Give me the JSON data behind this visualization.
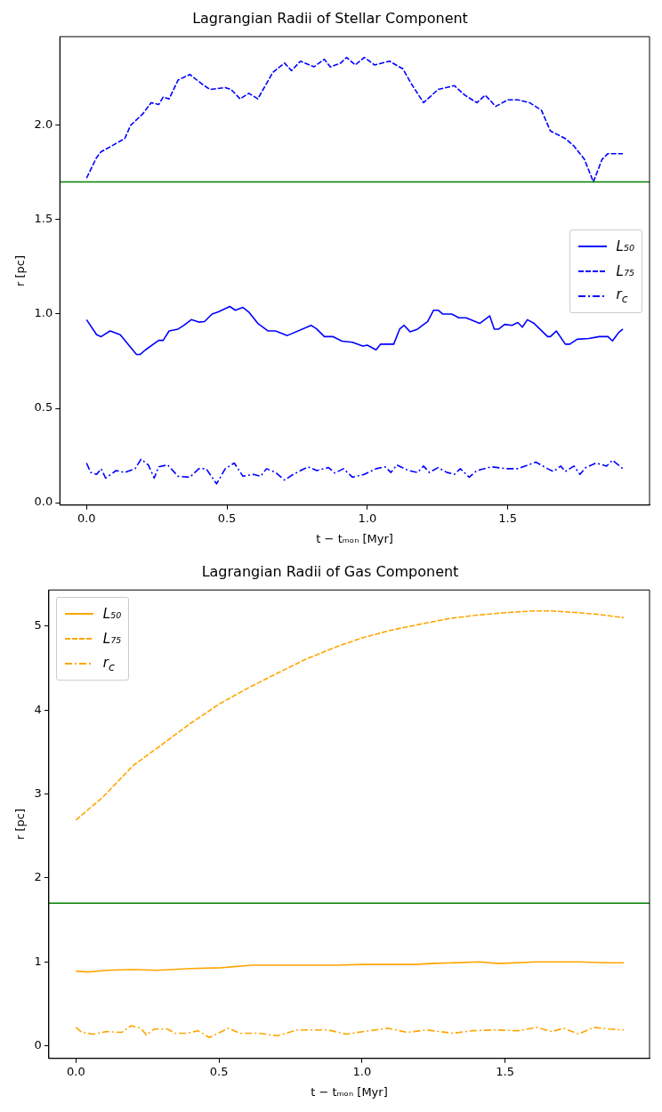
{
  "chart_data": [
    {
      "type": "line",
      "title": "Lagrangian Radii of Stellar Component",
      "xlabel": "t − tₘₒₙ [Myr]",
      "ylabel": "r [pc]",
      "xlim": [
        -0.095,
        2.005
      ],
      "ylim": [
        -0.013,
        2.47
      ],
      "xticks": [
        {
          "value": 0,
          "label": "0.0"
        },
        {
          "value": 0.5,
          "label": "0.5"
        },
        {
          "value": 1,
          "label": "1.0"
        },
        {
          "value": 1.5,
          "label": "1.5"
        }
      ],
      "yticks": [
        {
          "value": 0,
          "label": "0.0"
        },
        {
          "value": 0.5,
          "label": "0.5"
        },
        {
          "value": 1,
          "label": "1.0"
        },
        {
          "value": 1.5,
          "label": "1.5"
        },
        {
          "value": 2,
          "label": "2.0"
        }
      ],
      "grid": false,
      "legend": "right",
      "marker": "none",
      "ref_lines": [
        {
          "axis": "y",
          "value": 1.7,
          "color": "#008000"
        }
      ],
      "series": [
        {
          "name": "L₅₀",
          "color": "#0000ff",
          "line_style": "solid",
          "x": [
            0,
            0.036,
            0.052,
            0.084,
            0.12,
            0.178,
            0.19,
            0.21,
            0.257,
            0.273,
            0.294,
            0.326,
            0.347,
            0.373,
            0.4,
            0.42,
            0.447,
            0.468,
            0.51,
            0.53,
            0.557,
            0.578,
            0.61,
            0.647,
            0.673,
            0.715,
            0.8,
            0.82,
            0.847,
            0.878,
            0.91,
            0.947,
            0.984,
            1.0,
            1.031,
            1.047,
            1.094,
            1.115,
            1.131,
            1.152,
            1.179,
            1.215,
            1.236,
            1.252,
            1.268,
            1.3,
            1.326,
            1.352,
            1.4,
            1.436,
            1.452,
            1.468,
            1.489,
            1.515,
            1.536,
            1.552,
            1.57,
            1.594,
            1.642,
            1.652,
            1.673,
            1.705,
            1.721,
            1.747,
            1.789,
            1.826,
            1.857,
            1.873,
            1.894,
            1.91
          ],
          "values": [
            0.97,
            0.89,
            0.88,
            0.91,
            0.89,
            0.785,
            0.785,
            0.81,
            0.86,
            0.86,
            0.91,
            0.92,
            0.94,
            0.97,
            0.957,
            0.96,
            1.0,
            1.01,
            1.04,
            1.02,
            1.035,
            1.01,
            0.95,
            0.91,
            0.91,
            0.886,
            0.94,
            0.92,
            0.88,
            0.88,
            0.856,
            0.85,
            0.83,
            0.835,
            0.81,
            0.84,
            0.84,
            0.92,
            0.94,
            0.906,
            0.92,
            0.96,
            1.02,
            1.02,
            1.0,
            1.0,
            0.98,
            0.98,
            0.95,
            0.99,
            0.92,
            0.92,
            0.945,
            0.94,
            0.955,
            0.93,
            0.97,
            0.95,
            0.88,
            0.88,
            0.91,
            0.84,
            0.84,
            0.866,
            0.87,
            0.88,
            0.88,
            0.857,
            0.9,
            0.92
          ]
        },
        {
          "name": "L₇₅",
          "color": "#0000ff",
          "line_style": "dashed",
          "x": [
            0,
            0.036,
            0.052,
            0.089,
            0.136,
            0.157,
            0.2,
            0.23,
            0.257,
            0.273,
            0.294,
            0.326,
            0.368,
            0.41,
            0.44,
            0.494,
            0.515,
            0.547,
            0.578,
            0.61,
            0.663,
            0.705,
            0.73,
            0.762,
            0.81,
            0.847,
            0.868,
            0.905,
            0.926,
            0.957,
            0.989,
            1.026,
            1.079,
            1.126,
            1.157,
            1.2,
            1.252,
            1.31,
            1.347,
            1.39,
            1.42,
            1.457,
            1.5,
            1.536,
            1.578,
            1.62,
            1.652,
            1.705,
            1.736,
            1.773,
            1.805,
            1.836,
            1.857,
            1.884,
            1.91
          ],
          "values": [
            1.72,
            1.83,
            1.86,
            1.89,
            1.93,
            2.0,
            2.06,
            2.12,
            2.11,
            2.15,
            2.14,
            2.24,
            2.27,
            2.22,
            2.19,
            2.2,
            2.19,
            2.14,
            2.17,
            2.14,
            2.28,
            2.33,
            2.29,
            2.34,
            2.31,
            2.35,
            2.31,
            2.33,
            2.36,
            2.32,
            2.36,
            2.32,
            2.34,
            2.3,
            2.22,
            2.12,
            2.19,
            2.21,
            2.16,
            2.12,
            2.16,
            2.1,
            2.135,
            2.135,
            2.12,
            2.08,
            1.97,
            1.93,
            1.89,
            1.82,
            1.7,
            1.82,
            1.85,
            1.85,
            1.85
          ]
        },
        {
          "name": "r$_{c}$",
          "color": "#0000ff",
          "line_style": "dashdot",
          "x": [
            0,
            0.015,
            0.036,
            0.052,
            0.068,
            0.105,
            0.136,
            0.173,
            0.194,
            0.22,
            0.241,
            0.257,
            0.289,
            0.326,
            0.368,
            0.4,
            0.426,
            0.463,
            0.494,
            0.526,
            0.557,
            0.594,
            0.62,
            0.641,
            0.673,
            0.705,
            0.736,
            0.789,
            0.82,
            0.862,
            0.884,
            0.915,
            0.947,
            0.989,
            1.031,
            1.063,
            1.084,
            1.105,
            1.147,
            1.179,
            1.2,
            1.221,
            1.252,
            1.284,
            1.31,
            1.331,
            1.363,
            1.39,
            1.442,
            1.494,
            1.536,
            1.6,
            1.642,
            1.663,
            1.689,
            1.705,
            1.736,
            1.757,
            1.778,
            1.815,
            1.852,
            1.873,
            1.91
          ],
          "values": [
            0.21,
            0.16,
            0.15,
            0.18,
            0.13,
            0.17,
            0.16,
            0.18,
            0.23,
            0.2,
            0.13,
            0.19,
            0.2,
            0.14,
            0.135,
            0.18,
            0.18,
            0.1,
            0.18,
            0.21,
            0.14,
            0.15,
            0.14,
            0.18,
            0.16,
            0.12,
            0.15,
            0.19,
            0.17,
            0.186,
            0.157,
            0.18,
            0.135,
            0.15,
            0.18,
            0.19,
            0.16,
            0.2,
            0.17,
            0.16,
            0.194,
            0.16,
            0.186,
            0.16,
            0.15,
            0.18,
            0.135,
            0.17,
            0.19,
            0.18,
            0.18,
            0.215,
            0.18,
            0.165,
            0.194,
            0.165,
            0.194,
            0.15,
            0.186,
            0.21,
            0.194,
            0.225,
            0.18
          ]
        }
      ]
    },
    {
      "type": "line",
      "title": "Lagrangian Radii of Gas Component",
      "xlabel": "t − tₘₒₙ [Myr]",
      "ylabel": "r [pc]",
      "xlim": [
        -0.095,
        2.005
      ],
      "ylim": [
        -0.15,
        5.43
      ],
      "xticks": [
        {
          "value": 0,
          "label": "0.0"
        },
        {
          "value": 0.5,
          "label": "0.5"
        },
        {
          "value": 1,
          "label": "1.0"
        },
        {
          "value": 1.5,
          "label": "1.5"
        }
      ],
      "yticks": [
        0,
        1,
        2,
        3,
        4,
        5
      ],
      "grid": false,
      "legend": "top left",
      "marker": "none",
      "ref_lines": [
        {
          "axis": "y",
          "value": 1.7,
          "color": "#008000"
        }
      ],
      "series": [
        {
          "name": "L₅₀",
          "color": "#ffa500",
          "line_style": "solid",
          "x": [
            0,
            0.04,
            0.107,
            0.2,
            0.28,
            0.4,
            0.506,
            0.613,
            0.69,
            0.8,
            0.905,
            1.0,
            1.09,
            1.185,
            1.24,
            1.41,
            1.478,
            1.61,
            1.757,
            1.85,
            1.915
          ],
          "values": [
            0.89,
            0.88,
            0.9,
            0.91,
            0.9,
            0.92,
            0.93,
            0.96,
            0.96,
            0.96,
            0.96,
            0.97,
            0.97,
            0.97,
            0.98,
            1.0,
            0.98,
            1.0,
            1.0,
            0.99,
            0.99
          ]
        },
        {
          "name": "L₇₅",
          "color": "#ffa500",
          "line_style": "dashed",
          "x": [
            0,
            0.093,
            0.2,
            0.293,
            0.4,
            0.5,
            0.6,
            0.693,
            0.8,
            0.9,
            1.0,
            1.1,
            1.2,
            1.305,
            1.4,
            1.5,
            1.6,
            1.664,
            1.757,
            1.824,
            1.915
          ],
          "values": [
            2.69,
            2.96,
            3.34,
            3.57,
            3.84,
            4.07,
            4.26,
            4.42,
            4.6,
            4.74,
            4.86,
            4.95,
            5.02,
            5.09,
            5.13,
            5.16,
            5.18,
            5.18,
            5.16,
            5.14,
            5.1
          ]
        },
        {
          "name": "r$_{c}$",
          "color": "#ffa500",
          "line_style": "dashdot",
          "x": [
            0,
            0.02,
            0.06,
            0.107,
            0.16,
            0.193,
            0.226,
            0.246,
            0.273,
            0.32,
            0.346,
            0.386,
            0.426,
            0.466,
            0.533,
            0.573,
            0.64,
            0.706,
            0.772,
            0.879,
            0.945,
            1.025,
            1.09,
            1.158,
            1.225,
            1.318,
            1.385,
            1.465,
            1.545,
            1.61,
            1.664,
            1.704,
            1.757,
            1.81,
            1.864,
            1.915
          ],
          "values": [
            0.22,
            0.16,
            0.14,
            0.17,
            0.16,
            0.24,
            0.21,
            0.13,
            0.2,
            0.2,
            0.15,
            0.15,
            0.18,
            0.1,
            0.21,
            0.15,
            0.15,
            0.12,
            0.19,
            0.19,
            0.14,
            0.18,
            0.21,
            0.16,
            0.19,
            0.15,
            0.18,
            0.19,
            0.18,
            0.22,
            0.17,
            0.21,
            0.14,
            0.22,
            0.2,
            0.19
          ]
        }
      ]
    }
  ]
}
